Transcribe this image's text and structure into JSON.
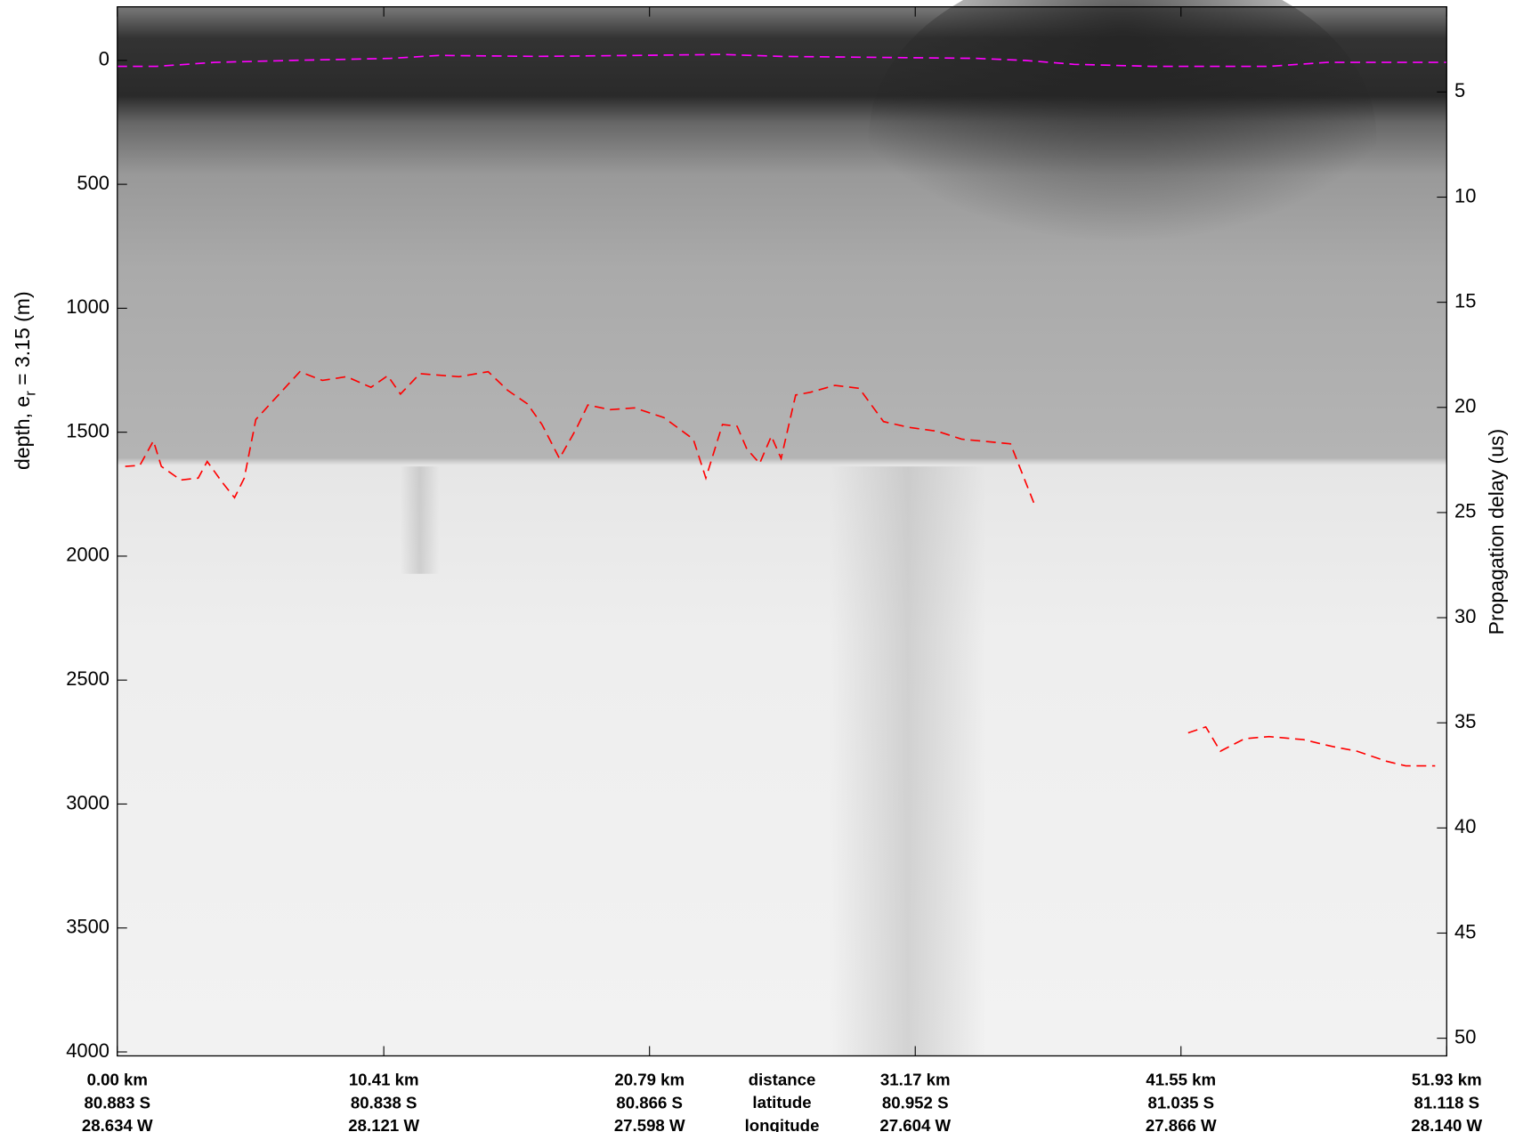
{
  "chart_data": {
    "type": "echogram",
    "ylabel": [
      "depth, e",
      "r",
      " = 3.15 (m)"
    ],
    "y2label": "Propagation delay (us)",
    "xlim": [
      0,
      51.93
    ],
    "xticks": [
      {
        "value": 0,
        "label": "0.00 km"
      },
      {
        "value": 10.41,
        "label": "10.41 km"
      },
      {
        "value": 20.79,
        "label": "20.79 km"
      },
      {
        "value": 31.17,
        "label": "31.17 km"
      },
      {
        "value": 41.55,
        "label": "41.55 km"
      },
      {
        "value": 51.93,
        "label": "51.93 km"
      }
    ],
    "latitudes": [
      "80.883 S",
      "80.838 S",
      "80.866 S",
      "80.952 S",
      "81.035 S",
      "81.118 S"
    ],
    "longitudes": [
      "28.634 W",
      "28.121 W",
      "27.598 W",
      "27.604 W",
      "27.866 W",
      "28.140 W"
    ],
    "row_labels": [
      "distance",
      "latitude",
      "longitude"
    ],
    "ylim": [
      -216,
      4016
    ],
    "y_inverted": true,
    "yticks": [
      0,
      500,
      1000,
      1500,
      2000,
      2500,
      3000,
      3500,
      4000
    ],
    "y2lim": [
      0.95,
      50.84
    ],
    "y2ticks": [
      5,
      10,
      15,
      20,
      25,
      30,
      35,
      40,
      45,
      50
    ],
    "series": [
      {
        "color": "#ff00ff",
        "x": [
          0,
          1.53,
          3.81,
          6.86,
          10.68,
          12.58,
          16.4,
          20.21,
          23.64,
          25.93,
          29.74,
          33.55,
          35.46,
          37.37,
          40.42,
          44.99,
          47.28,
          49.57,
          51.93
        ],
        "values": [
          24,
          24,
          8,
          0,
          -8,
          -20,
          -16,
          -20,
          -24,
          -16,
          -12,
          -8,
          0,
          16,
          24,
          24,
          8,
          8,
          8
        ]
      },
      {
        "color": "#ff0000",
        "x": [
          0.31,
          0.88,
          1.41,
          1.72,
          2.48,
          3.16,
          3.51,
          4.12,
          4.58,
          4.96,
          5.41,
          6.29,
          7.13,
          8.01,
          8.96,
          9.91,
          10.56,
          11.06,
          11.82,
          13.35,
          14.49,
          15.25,
          16.02,
          16.59,
          17.27,
          17.92,
          18.38,
          19.26,
          20.21,
          21.35,
          22.5,
          22.99,
          23.64,
          24.21,
          24.59,
          25.09,
          25.55,
          25.93,
          26.5,
          27.07,
          28.03,
          28.98,
          29.93,
          30.89,
          32.03,
          32.98,
          34.89,
          35.84,
          null,
          41.83,
          42.52,
          43.09,
          44.04,
          44.99,
          46.33,
          47.47,
          48.43,
          49.57,
          50.33,
          51.48
        ],
        "values": [
          1638,
          1634,
          1535,
          1638,
          1693,
          1685,
          1618,
          1705,
          1764,
          1685,
          1449,
          1350,
          1256,
          1291,
          1276,
          1319,
          1272,
          1346,
          1264,
          1276,
          1256,
          1331,
          1386,
          1469,
          1606,
          1488,
          1390,
          1409,
          1402,
          1441,
          1528,
          1685,
          1469,
          1476,
          1567,
          1626,
          1516,
          1606,
          1350,
          1339,
          1311,
          1323,
          1457,
          1480,
          1496,
          1528,
          1547,
          1795,
          null,
          2713,
          2689,
          2787,
          2736,
          2728,
          2740,
          2768,
          2787,
          2827,
          2846,
          2846
        ]
      }
    ]
  }
}
